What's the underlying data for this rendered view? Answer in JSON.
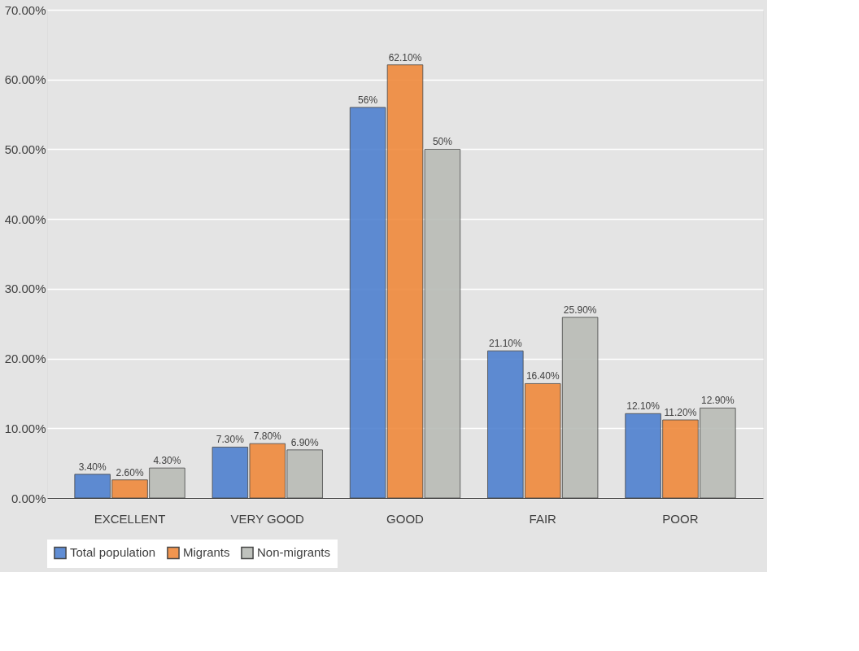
{
  "chart_data": {
    "type": "bar",
    "categories": [
      "EXCELLENT",
      "VERY GOOD",
      "GOOD",
      "FAIR",
      "POOR"
    ],
    "series": [
      {
        "name": "Total population",
        "color": "#4f81d0",
        "values": [
          3.4,
          7.3,
          56,
          21.1,
          12.1
        ],
        "value_labels": [
          "3.40%",
          "7.30%",
          "56%",
          "21.10%",
          "12.10%"
        ]
      },
      {
        "name": "Migrants",
        "color": "#f08a3c",
        "values": [
          2.6,
          7.8,
          62.1,
          16.4,
          11.2
        ],
        "value_labels": [
          "2.60%",
          "7.80%",
          "62.10%",
          "16.40%",
          "11.20%"
        ]
      },
      {
        "name": "Non-migrants",
        "color": "#b9bcb6",
        "values": [
          4.3,
          6.9,
          50,
          25.9,
          12.9
        ],
        "value_labels": [
          "4.30%",
          "6.90%",
          "50%",
          "25.90%",
          "12.90%"
        ]
      }
    ],
    "ylim": [
      0,
      70
    ],
    "yticks": [
      {
        "value": 0,
        "label": "0.00%"
      },
      {
        "value": 10,
        "label": "10.00%"
      },
      {
        "value": 20,
        "label": "20.00%"
      },
      {
        "value": 30,
        "label": "30.00%"
      },
      {
        "value": 40,
        "label": "40.00%"
      },
      {
        "value": 50,
        "label": "50.00%"
      },
      {
        "value": 60,
        "label": "60.00%"
      },
      {
        "value": 70,
        "label": "70.00%"
      }
    ],
    "grid": "y",
    "legend": "bottom"
  }
}
